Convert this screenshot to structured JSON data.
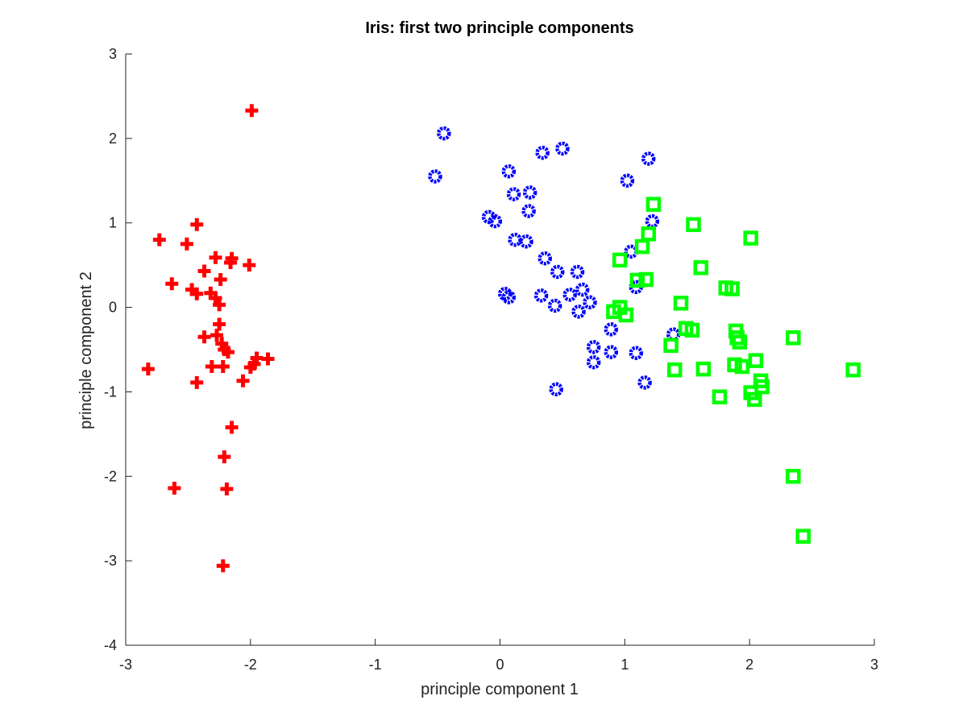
{
  "chart_data": {
    "type": "scatter",
    "title": "Iris: first two principle components",
    "xlabel": "principle component 1",
    "ylabel": "principle component 2",
    "xlim": [
      -3,
      3
    ],
    "ylim": [
      -4,
      3
    ],
    "xticks": [
      -3,
      -2,
      -1,
      0,
      1,
      2,
      3
    ],
    "yticks": [
      -4,
      -3,
      -2,
      -1,
      0,
      1,
      2,
      3
    ],
    "grid": false,
    "series": [
      {
        "marker": "plus",
        "color": "#ff0000",
        "points": [
          [
            -1.99,
            2.33
          ],
          [
            -2.43,
            0.98
          ],
          [
            -2.73,
            0.8
          ],
          [
            -2.51,
            0.75
          ],
          [
            -2.28,
            0.59
          ],
          [
            -2.15,
            0.58
          ],
          [
            -2.16,
            0.53
          ],
          [
            -2.01,
            0.5
          ],
          [
            -2.37,
            0.43
          ],
          [
            -2.24,
            0.33
          ],
          [
            -2.63,
            0.28
          ],
          [
            -2.47,
            0.21
          ],
          [
            -2.43,
            0.16
          ],
          [
            -2.32,
            0.17
          ],
          [
            -2.28,
            0.11
          ],
          [
            -2.25,
            0.03
          ],
          [
            -2.25,
            -0.2
          ],
          [
            -2.37,
            -0.35
          ],
          [
            -2.27,
            -0.33
          ],
          [
            -2.23,
            -0.43
          ],
          [
            -2.21,
            -0.5
          ],
          [
            -2.18,
            -0.53
          ],
          [
            -1.95,
            -0.6
          ],
          [
            -1.86,
            -0.61
          ],
          [
            -1.97,
            -0.67
          ],
          [
            -2.0,
            -0.71
          ],
          [
            -2.31,
            -0.7
          ],
          [
            -2.22,
            -0.7
          ],
          [
            -2.82,
            -0.73
          ],
          [
            -2.06,
            -0.87
          ],
          [
            -2.43,
            -0.89
          ],
          [
            -2.15,
            -1.42
          ],
          [
            -2.21,
            -1.77
          ],
          [
            -2.61,
            -2.14
          ],
          [
            -2.19,
            -2.15
          ],
          [
            -2.22,
            -3.06
          ]
        ]
      },
      {
        "marker": "circle",
        "color": "#0000ff",
        "points": [
          [
            -0.45,
            2.06
          ],
          [
            -0.52,
            1.55
          ],
          [
            0.5,
            1.88
          ],
          [
            0.34,
            1.83
          ],
          [
            1.19,
            1.76
          ],
          [
            0.07,
            1.61
          ],
          [
            1.02,
            1.5
          ],
          [
            0.24,
            1.36
          ],
          [
            0.11,
            1.34
          ],
          [
            0.23,
            1.14
          ],
          [
            -0.09,
            1.07
          ],
          [
            -0.04,
            1.02
          ],
          [
            1.22,
            1.02
          ],
          [
            0.12,
            0.8
          ],
          [
            0.21,
            0.78
          ],
          [
            1.05,
            0.66
          ],
          [
            0.36,
            0.58
          ],
          [
            0.46,
            0.42
          ],
          [
            0.62,
            0.42
          ],
          [
            1.09,
            0.24
          ],
          [
            0.66,
            0.21
          ],
          [
            0.04,
            0.16
          ],
          [
            0.07,
            0.12
          ],
          [
            0.33,
            0.14
          ],
          [
            0.56,
            0.15
          ],
          [
            0.72,
            0.06
          ],
          [
            0.44,
            0.02
          ],
          [
            0.63,
            -0.05
          ],
          [
            0.89,
            -0.26
          ],
          [
            1.39,
            -0.32
          ],
          [
            0.75,
            -0.47
          ],
          [
            0.89,
            -0.53
          ],
          [
            1.09,
            -0.54
          ],
          [
            0.75,
            -0.65
          ],
          [
            1.16,
            -0.89
          ],
          [
            0.45,
            -0.97
          ]
        ]
      },
      {
        "marker": "square",
        "color": "#00ff00",
        "points": [
          [
            1.23,
            1.22
          ],
          [
            1.55,
            0.98
          ],
          [
            2.01,
            0.82
          ],
          [
            1.19,
            0.87
          ],
          [
            1.14,
            0.72
          ],
          [
            0.96,
            0.56
          ],
          [
            1.61,
            0.47
          ],
          [
            1.17,
            0.33
          ],
          [
            1.1,
            0.32
          ],
          [
            1.81,
            0.23
          ],
          [
            1.86,
            0.22
          ],
          [
            1.45,
            0.05
          ],
          [
            0.96,
            0.0
          ],
          [
            0.91,
            -0.05
          ],
          [
            1.01,
            -0.09
          ],
          [
            1.49,
            -0.25
          ],
          [
            1.54,
            -0.27
          ],
          [
            1.89,
            -0.28
          ],
          [
            1.9,
            -0.36
          ],
          [
            1.92,
            -0.41
          ],
          [
            2.35,
            -0.36
          ],
          [
            1.37,
            -0.45
          ],
          [
            2.05,
            -0.63
          ],
          [
            1.88,
            -0.68
          ],
          [
            1.94,
            -0.7
          ],
          [
            1.4,
            -0.74
          ],
          [
            1.63,
            -0.73
          ],
          [
            2.83,
            -0.74
          ],
          [
            2.09,
            -0.87
          ],
          [
            2.1,
            -0.94
          ],
          [
            2.01,
            -1.01
          ],
          [
            2.04,
            -1.09
          ],
          [
            1.76,
            -1.06
          ],
          [
            2.35,
            -2.0
          ],
          [
            2.43,
            -2.71
          ]
        ]
      }
    ]
  }
}
